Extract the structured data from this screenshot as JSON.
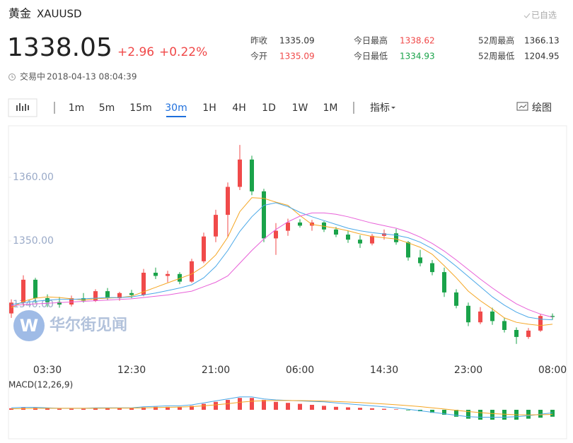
{
  "header": {
    "name": "黄金",
    "symbol": "XAUUSD",
    "watch_button": "已自选",
    "price": 1338.05,
    "change": "+2.96",
    "change_percent": "+0.22%",
    "status": "交易中",
    "timestamp": "2018-04-13 08:04:39"
  },
  "stats": [
    {
      "label": "昨收",
      "value": 1335.09,
      "color": "#333333"
    },
    {
      "label": "今开",
      "value": 1335.09,
      "color": "#f04848"
    },
    {
      "label": "今日最高",
      "value": 1338.62,
      "color": "#f04848"
    },
    {
      "label": "今日最低",
      "value": 1334.93,
      "color": "#1aa34a"
    },
    {
      "label": "52周最高",
      "value": 1366.13,
      "color": "#333333"
    },
    {
      "label": "52周最低",
      "value": 1204.95,
      "color": "#333333"
    }
  ],
  "toolbar": {
    "intervals": [
      "1m",
      "5m",
      "15m",
      "30m",
      "1H",
      "4H",
      "1D",
      "1W",
      "1M"
    ],
    "selected_interval": 3,
    "indicators": "指标",
    "draw": "绘图"
  },
  "watermark": "华尔街见闻",
  "chart_data": {
    "type": "candlestick",
    "categories": [
      null,
      null,
      null,
      "03:30",
      null,
      null,
      null,
      null,
      null,
      null,
      "12:30",
      null,
      null,
      null,
      null,
      null,
      null,
      "21:00",
      null,
      null,
      null,
      null,
      null,
      null,
      "06:00",
      null,
      null,
      null,
      null,
      null,
      null,
      "14:30",
      null,
      null,
      null,
      null,
      null,
      null,
      "23:00",
      null,
      null,
      null,
      null,
      null,
      null,
      "08:00"
    ],
    "open": [
      1338.6,
      1340.3,
      1343.9,
      1341.0,
      1340.4,
      1340.0,
      1341.0,
      1340.6,
      1342.1,
      1341.0,
      1341.8,
      1341.5,
      1345.0,
      1344.5,
      1344.8,
      1343.6,
      1346.8,
      1350.7,
      1354.1,
      1358.5,
      1362.8,
      1357.8,
      1350.4,
      1351.6,
      1352.9,
      1352.4,
      1352.9,
      1351.8,
      1351.0,
      1350.2,
      1349.6,
      1350.8,
      1351.2,
      1349.8,
      1347.4,
      1346.5,
      1345.1,
      1341.9,
      1339.8,
      1337.2,
      1338.9,
      1337.4,
      1336.0,
      1334.9,
      1335.9,
      1338.2
    ],
    "high": [
      1340.8,
      1344.6,
      1344.2,
      1341.6,
      1341.2,
      1341.4,
      1341.8,
      1342.4,
      1342.6,
      1342.0,
      1342.3,
      1345.6,
      1345.8,
      1345.3,
      1345.1,
      1347.2,
      1351.3,
      1354.9,
      1359.2,
      1365.1,
      1363.4,
      1358.2,
      1352.8,
      1353.5,
      1353.4,
      1353.3,
      1353.1,
      1352.2,
      1351.6,
      1350.9,
      1351.1,
      1351.8,
      1351.9,
      1350.0,
      1348.6,
      1347.0,
      1345.8,
      1342.4,
      1340.3,
      1339.6,
      1339.5,
      1337.9,
      1336.4,
      1336.3,
      1338.5,
      1338.6
    ],
    "low": [
      1337.9,
      1339.8,
      1340.2,
      1339.6,
      1339.5,
      1339.7,
      1340.3,
      1340.4,
      1340.7,
      1340.6,
      1341.0,
      1341.3,
      1344.0,
      1343.5,
      1343.2,
      1343.4,
      1346.5,
      1349.8,
      1350.6,
      1358.0,
      1357.2,
      1349.8,
      1347.8,
      1350.8,
      1352.1,
      1351.6,
      1351.4,
      1350.6,
      1349.7,
      1348.9,
      1349.3,
      1350.2,
      1349.4,
      1346.9,
      1346.0,
      1344.6,
      1341.2,
      1339.4,
      1336.6,
      1336.9,
      1336.8,
      1335.6,
      1333.8,
      1334.6,
      1335.7,
      1337.6
    ],
    "close": [
      1340.3,
      1343.9,
      1341.0,
      1340.4,
      1340.0,
      1341.0,
      1340.6,
      1342.1,
      1341.0,
      1341.8,
      1341.5,
      1345.0,
      1344.5,
      1344.8,
      1343.6,
      1346.8,
      1350.7,
      1354.1,
      1358.5,
      1362.8,
      1357.8,
      1350.4,
      1351.6,
      1352.9,
      1352.4,
      1352.9,
      1351.8,
      1351.0,
      1350.2,
      1349.6,
      1350.8,
      1351.2,
      1349.8,
      1347.4,
      1346.5,
      1345.1,
      1341.9,
      1339.8,
      1337.2,
      1338.9,
      1337.4,
      1336.0,
      1334.9,
      1335.9,
      1338.2,
      1338.05
    ],
    "up_color": "#f04a4a",
    "down_color": "#1aa34a",
    "lines": [
      {
        "color": "#f5a623",
        "values": [
          1339.5,
          1340.5,
          1341.0,
          1341.2,
          1341.1,
          1340.9,
          1340.7,
          1340.9,
          1341.0,
          1341.1,
          1341.3,
          1342.0,
          1342.7,
          1343.4,
          1344.1,
          1344.8,
          1346.0,
          1347.8,
          1350.6,
          1354.6,
          1356.8,
          1356.7,
          1356.1,
          1355.6,
          1354.0,
          1352.6,
          1352.3,
          1352.0,
          1351.6,
          1351.1,
          1350.7,
          1350.5,
          1350.3,
          1349.7,
          1349.0,
          1347.9,
          1346.1,
          1344.2,
          1342.1,
          1340.6,
          1339.3,
          1337.9,
          1337.2,
          1336.9,
          1336.7,
          1336.9
        ]
      },
      {
        "color": "#4aa8e8",
        "values": [
          1340.0,
          1340.3,
          1340.5,
          1340.7,
          1340.8,
          1340.8,
          1340.9,
          1341.0,
          1341.1,
          1341.1,
          1341.2,
          1341.5,
          1341.8,
          1342.2,
          1342.6,
          1343.1,
          1344.2,
          1346.0,
          1348.5,
          1351.5,
          1353.8,
          1355.6,
          1356.0,
          1355.4,
          1354.5,
          1353.8,
          1353.2,
          1352.6,
          1352.0,
          1351.6,
          1351.3,
          1351.1,
          1350.9,
          1350.5,
          1349.8,
          1348.8,
          1347.5,
          1346.0,
          1344.4,
          1342.8,
          1341.2,
          1339.9,
          1338.8,
          1338.0,
          1337.7,
          1337.6
        ]
      },
      {
        "color": "#e860d8",
        "values": [
          1339.8,
          1340.0,
          1340.1,
          1340.2,
          1340.3,
          1340.4,
          1340.5,
          1340.6,
          1340.7,
          1340.8,
          1340.9,
          1341.1,
          1341.3,
          1341.5,
          1341.8,
          1342.1,
          1342.8,
          1343.5,
          1344.5,
          1346.5,
          1348.5,
          1350.3,
          1351.8,
          1353.0,
          1353.9,
          1354.4,
          1354.4,
          1354.2,
          1353.8,
          1353.3,
          1352.8,
          1352.4,
          1352.0,
          1351.4,
          1350.6,
          1349.6,
          1348.4,
          1347.0,
          1345.5,
          1344.0,
          1342.6,
          1341.3,
          1340.1,
          1339.2,
          1338.5,
          1338.0
        ]
      }
    ],
    "ylim": [
      1332,
      1368
    ],
    "yticks": [
      {
        "value": 1340,
        "label": "1340.00"
      },
      {
        "value": 1350,
        "label": "1350.00"
      },
      {
        "value": 1360,
        "label": "1360.00"
      }
    ],
    "indicator": {
      "label": "MACD(12,26,9)",
      "ylim": [
        -1.5,
        1.5
      ],
      "histogram": [
        0.15,
        0.2,
        0.2,
        0.15,
        0.1,
        0.1,
        0.1,
        0.15,
        0.15,
        0.15,
        0.15,
        0.25,
        0.3,
        0.3,
        0.3,
        0.4,
        0.6,
        0.8,
        1.0,
        1.2,
        1.2,
        1.0,
        0.8,
        0.7,
        0.6,
        0.5,
        0.4,
        0.3,
        0.25,
        0.2,
        0.15,
        0.1,
        0.05,
        -0.05,
        -0.15,
        -0.3,
        -0.5,
        -0.7,
        -0.9,
        -1.0,
        -1.0,
        -1.0,
        -1.0,
        -0.9,
        -0.8,
        -0.7
      ],
      "lines": [
        {
          "color": "#4aa8e8",
          "values": [
            0.2,
            0.25,
            0.25,
            0.2,
            0.15,
            0.15,
            0.15,
            0.2,
            0.2,
            0.2,
            0.2,
            0.3,
            0.35,
            0.4,
            0.4,
            0.5,
            0.7,
            0.9,
            1.1,
            1.3,
            1.3,
            1.1,
            1.0,
            0.95,
            0.9,
            0.85,
            0.8,
            0.7,
            0.6,
            0.5,
            0.4,
            0.3,
            0.2,
            0.05,
            -0.1,
            -0.25,
            -0.4,
            -0.55,
            -0.7,
            -0.75,
            -0.75,
            -0.75,
            -0.7,
            -0.6,
            -0.45,
            -0.3
          ]
        },
        {
          "color": "#f5a623",
          "values": [
            0.1,
            0.12,
            0.14,
            0.15,
            0.15,
            0.15,
            0.15,
            0.15,
            0.16,
            0.17,
            0.17,
            0.2,
            0.22,
            0.25,
            0.28,
            0.32,
            0.4,
            0.5,
            0.62,
            0.76,
            0.87,
            0.92,
            0.94,
            0.94,
            0.93,
            0.91,
            0.88,
            0.84,
            0.79,
            0.73,
            0.66,
            0.59,
            0.51,
            0.42,
            0.32,
            0.2,
            0.08,
            -0.05,
            -0.18,
            -0.29,
            -0.38,
            -0.45,
            -0.5,
            -0.52,
            -0.5,
            -0.46
          ]
        }
      ]
    }
  }
}
